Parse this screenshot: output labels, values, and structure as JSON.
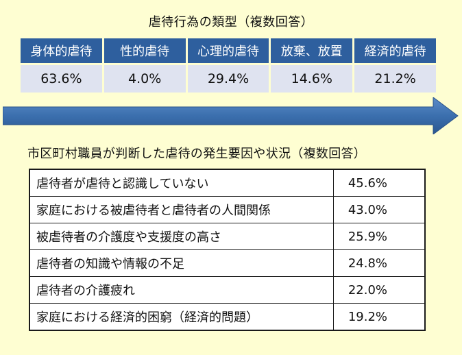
{
  "abuse_types": {
    "title": "虐待行為の類型（複数回答）",
    "items": [
      {
        "label": "身体的虐待",
        "value": "63.6%"
      },
      {
        "label": "性的虐待",
        "value": "4.0%"
      },
      {
        "label": "心理的虐待",
        "value": "29.4%"
      },
      {
        "label": "放棄、放置",
        "value": "14.6%"
      },
      {
        "label": "経済的虐待",
        "value": "21.2%"
      }
    ]
  },
  "arrow": {
    "color": "#3b6fae"
  },
  "factors": {
    "title": "市区町村職員が判断した虐待の発生要因や状況（複数回答）",
    "rows": [
      {
        "label": "虐待者が虐待と認識していない",
        "value": "45.6%"
      },
      {
        "label": "家庭における被虐待者と虐待者の人間関係",
        "value": "43.0%"
      },
      {
        "label": "被虐待者の介護度や支援度の高さ",
        "value": "25.9%"
      },
      {
        "label": "虐待者の知識や情報の不足",
        "value": "24.8%"
      },
      {
        "label": "虐待者の介護疲れ",
        "value": "22.0%"
      },
      {
        "label": "家庭における経済的困窮（経済的問題）",
        "value": "19.2%"
      }
    ]
  },
  "colors": {
    "background": "#fefed2",
    "header_blue": "#2e5f9e",
    "value_cell": "#dfe3f0"
  }
}
